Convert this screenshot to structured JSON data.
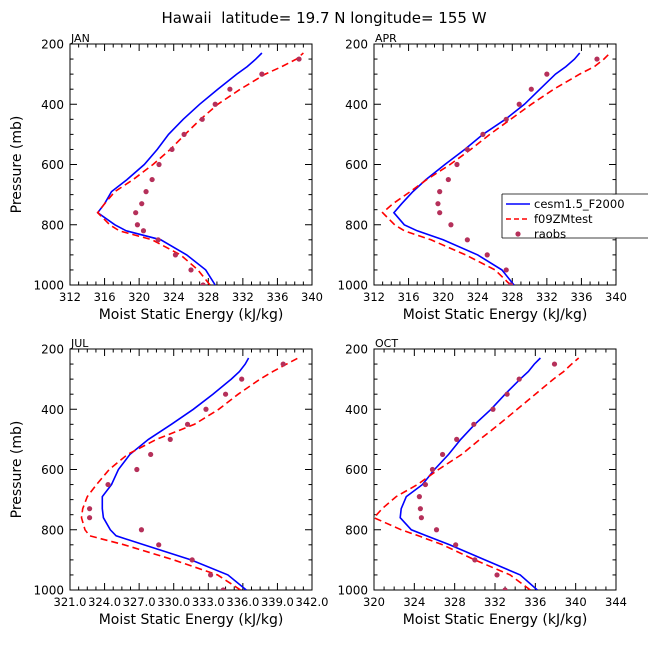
{
  "title": "Hawaii  latitude= 19.7 N longitude= 155 W",
  "legend": {
    "entries": [
      {
        "label": "cesm1.5_F2000",
        "color": "#0000ff",
        "style": "solid"
      },
      {
        "label": "f09ZMtest",
        "color": "#ff0000",
        "style": "dashed"
      },
      {
        "label": "raobs",
        "color": "#b5305a",
        "style": "dot"
      }
    ]
  },
  "chart_data": [
    {
      "type": "line",
      "panel": "JAN",
      "title": "JAN",
      "xlabel": "Moist Static Energy (kJ/kg)",
      "ylabel": "Pressure (mb)",
      "xlim": [
        312,
        340
      ],
      "ylim": [
        1000,
        200
      ],
      "xticks": [
        312,
        316,
        320,
        324,
        328,
        332,
        336,
        340
      ],
      "xtick_labels": [
        "312",
        "316",
        "320",
        "324",
        "328",
        "332",
        "336",
        "340"
      ],
      "yticks": [
        200,
        400,
        600,
        800,
        1000
      ],
      "y_pressure": [
        1000,
        950,
        900,
        850,
        820,
        800,
        760,
        730,
        690,
        650,
        600,
        550,
        500,
        450,
        400,
        350,
        300,
        275,
        250,
        230
      ],
      "series": [
        {
          "name": "cesm1.5_F2000",
          "values": [
            328.8,
            327.7,
            325.5,
            322.5,
            318.5,
            317.2,
            315.2,
            316.0,
            316.8,
            318.6,
            320.6,
            322.1,
            323.4,
            325.1,
            327.0,
            329.1,
            331.3,
            332.5,
            333.5,
            334.2
          ]
        },
        {
          "name": "f09ZMtest",
          "values": [
            328.2,
            326.8,
            324.8,
            321.5,
            317.7,
            316.6,
            315.2,
            316.0,
            317.2,
            319.3,
            321.6,
            323.6,
            325.3,
            327.1,
            329.1,
            331.7,
            334.6,
            336.5,
            338.2,
            339.0
          ]
        },
        {
          "name": "raobs",
          "values": [
            327.4,
            326.0,
            324.2,
            322.2,
            320.5,
            319.8,
            319.6,
            320.3,
            320.8,
            321.5,
            322.3,
            323.8,
            325.2,
            327.3,
            328.8,
            330.5,
            334.2,
            null,
            338.5,
            null
          ]
        }
      ]
    },
    {
      "type": "line",
      "panel": "APR",
      "title": "APR",
      "xlabel": "Moist Static Energy (kJ/kg)",
      "ylabel": "",
      "xlim": [
        312,
        340
      ],
      "ylim": [
        1000,
        200
      ],
      "xticks": [
        312,
        316,
        320,
        324,
        328,
        332,
        336,
        340
      ],
      "xtick_labels": [
        "312",
        "316",
        "320",
        "324",
        "328",
        "332",
        "336",
        "340"
      ],
      "yticks": [
        200,
        400,
        600,
        800,
        1000
      ],
      "y_pressure": [
        1000,
        950,
        900,
        850,
        820,
        800,
        760,
        730,
        690,
        650,
        600,
        550,
        500,
        450,
        400,
        350,
        300,
        275,
        250,
        230
      ],
      "series": [
        {
          "name": "cesm1.5_F2000",
          "values": [
            328.2,
            326.8,
            324.0,
            320.0,
            317.0,
            315.5,
            314.3,
            315.2,
            316.5,
            318.0,
            320.2,
            322.5,
            324.6,
            327.2,
            329.4,
            331.2,
            333.0,
            334.2,
            335.2,
            335.8
          ]
        },
        {
          "name": "f09ZMtest",
          "values": [
            327.8,
            326.0,
            322.6,
            318.6,
            315.5,
            314.4,
            313.0,
            314.2,
            316.2,
            318.1,
            320.8,
            323.2,
            325.4,
            327.8,
            330.2,
            332.8,
            335.8,
            337.5,
            338.6,
            339.3
          ]
        },
        {
          "name": "raobs",
          "values": [
            327.8,
            327.3,
            325.1,
            322.8,
            null,
            320.9,
            319.6,
            319.4,
            319.6,
            320.6,
            321.6,
            322.8,
            324.6,
            327.3,
            328.8,
            330.2,
            332.0,
            null,
            337.8,
            null
          ]
        }
      ]
    },
    {
      "type": "line",
      "panel": "JUL",
      "title": "JUL",
      "xlabel": "Moist Static Energy (kJ/kg)",
      "ylabel": "Pressure (mb)",
      "xlim": [
        321.0,
        342.0
      ],
      "ylim": [
        1000,
        200
      ],
      "xticks": [
        321,
        324,
        327,
        330,
        333,
        336,
        339,
        342
      ],
      "xtick_labels": [
        "321.0",
        "324.0",
        "327.0",
        "330.0",
        "333.0",
        "336.0",
        "339.0",
        "342.0"
      ],
      "yticks": [
        200,
        400,
        600,
        800,
        1000
      ],
      "y_pressure": [
        1000,
        950,
        900,
        850,
        820,
        800,
        760,
        730,
        690,
        650,
        600,
        550,
        500,
        450,
        400,
        350,
        300,
        275,
        250,
        230
      ],
      "series": [
        {
          "name": "cesm1.5_F2000",
          "values": [
            336.3,
            334.7,
            331.5,
            327.4,
            325.0,
            324.5,
            323.9,
            323.8,
            323.8,
            324.6,
            325.2,
            326.2,
            327.8,
            329.8,
            331.7,
            333.4,
            335.0,
            335.7,
            336.2,
            336.5
          ]
        },
        {
          "name": "f09ZMtest",
          "values": [
            335.8,
            333.8,
            330.0,
            325.7,
            322.7,
            322.3,
            322.0,
            322.1,
            322.5,
            323.3,
            324.4,
            326.0,
            328.5,
            331.8,
            333.9,
            335.6,
            337.5,
            338.6,
            339.8,
            340.8
          ]
        },
        {
          "name": "raobs",
          "values": [
            334.3,
            333.2,
            331.6,
            328.7,
            null,
            327.2,
            322.7,
            322.7,
            null,
            324.3,
            326.8,
            328.0,
            329.7,
            331.2,
            332.8,
            334.5,
            335.9,
            null,
            339.5,
            null
          ]
        }
      ]
    },
    {
      "type": "line",
      "panel": "OCT",
      "title": "OCT",
      "xlabel": "Moist Static Energy (kJ/kg)",
      "ylabel": "",
      "xlim": [
        320,
        344
      ],
      "ylim": [
        1000,
        200
      ],
      "xticks": [
        320,
        324,
        328,
        332,
        336,
        340,
        344
      ],
      "xtick_labels": [
        "320",
        "324",
        "328",
        "332",
        "336",
        "340",
        "344"
      ],
      "yticks": [
        200,
        400,
        600,
        800,
        1000
      ],
      "y_pressure": [
        1000,
        950,
        900,
        850,
        820,
        800,
        760,
        730,
        690,
        650,
        600,
        550,
        500,
        450,
        400,
        350,
        300,
        275,
        250,
        230
      ],
      "series": [
        {
          "name": "cesm1.5_F2000",
          "values": [
            336.2,
            334.5,
            331.0,
            327.5,
            325.2,
            323.7,
            322.6,
            322.7,
            323.2,
            324.8,
            326.0,
            327.4,
            328.6,
            330.0,
            331.6,
            333.0,
            334.5,
            335.3,
            335.9,
            336.5
          ]
        },
        {
          "name": "f09ZMtest",
          "values": [
            335.5,
            333.5,
            330.0,
            326.8,
            324.4,
            322.7,
            320.0,
            320.8,
            322.2,
            324.3,
            326.4,
            328.7,
            330.5,
            332.4,
            334.2,
            336.0,
            337.8,
            338.8,
            339.6,
            340.3
          ]
        },
        {
          "name": "raobs",
          "values": [
            333.0,
            332.2,
            330.0,
            328.1,
            null,
            326.2,
            324.7,
            324.6,
            324.5,
            325.1,
            325.8,
            326.8,
            328.2,
            329.9,
            331.8,
            333.2,
            334.4,
            null,
            337.9,
            null
          ]
        }
      ]
    }
  ]
}
